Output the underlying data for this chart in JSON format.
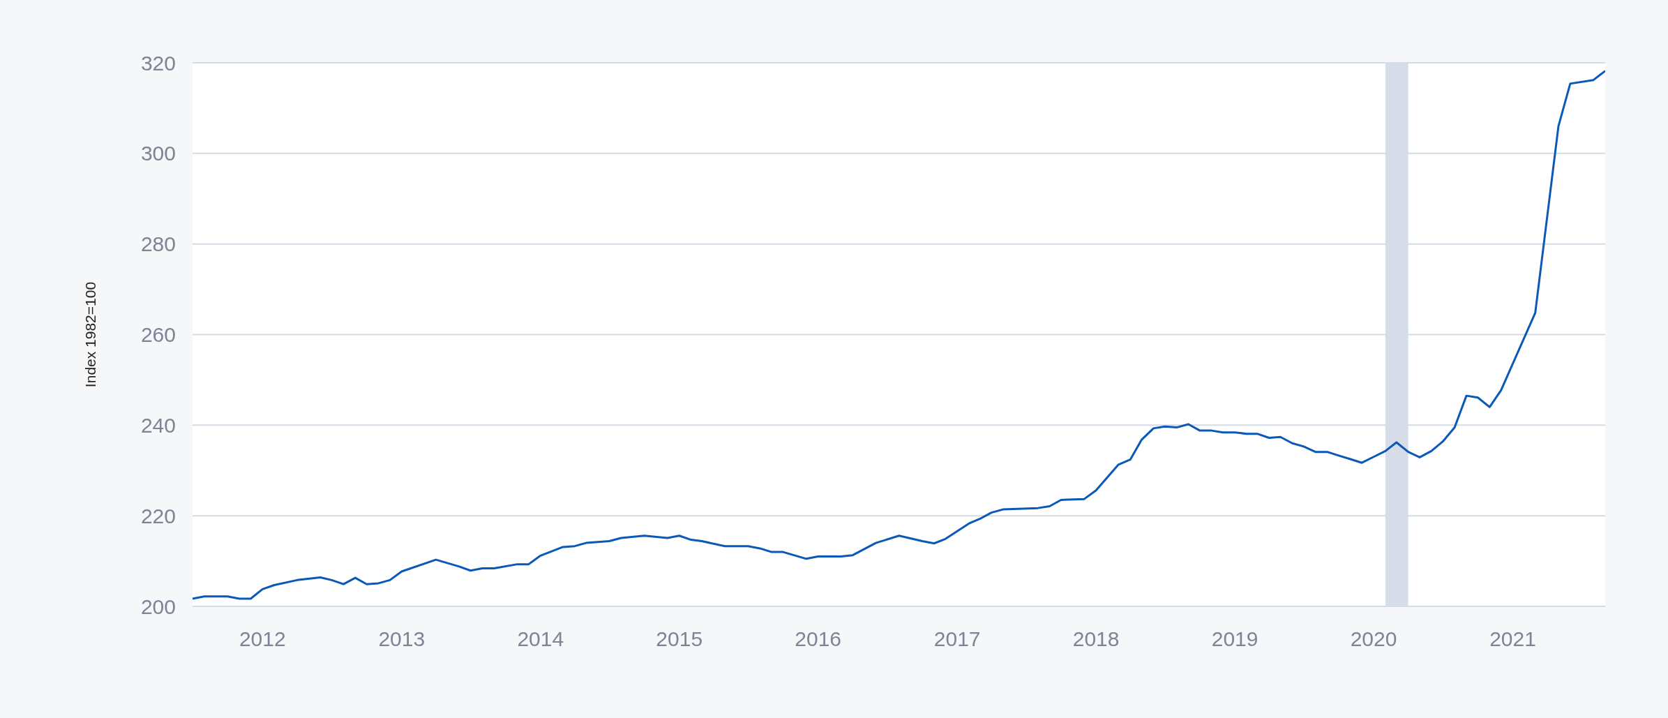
{
  "chart_data": {
    "type": "line",
    "ylabel": "Index 1982=100",
    "x": [
      "2011-07",
      "2011-08",
      "2011-10",
      "2011-11",
      "2011-12",
      "2012-01",
      "2012-02",
      "2012-04",
      "2012-06",
      "2012-07",
      "2012-08",
      "2012-09",
      "2012-10",
      "2012-11",
      "2012-12",
      "2013-01",
      "2013-04",
      "2013-06",
      "2013-07",
      "2013-08",
      "2013-09",
      "2013-11",
      "2013-12",
      "2014-01",
      "2014-03",
      "2014-04",
      "2014-05",
      "2014-07",
      "2014-08",
      "2014-10",
      "2014-12",
      "2015-01",
      "2015-02",
      "2015-03",
      "2015-05",
      "2015-06",
      "2015-07",
      "2015-08",
      "2015-09",
      "2015-10",
      "2015-12",
      "2016-01",
      "2016-03",
      "2016-04",
      "2016-06",
      "2016-08",
      "2016-10",
      "2016-11",
      "2016-12",
      "2017-02",
      "2017-03",
      "2017-04",
      "2017-05",
      "2017-08",
      "2017-09",
      "2017-10",
      "2017-12",
      "2018-01",
      "2018-03",
      "2018-04",
      "2018-05",
      "2018-06",
      "2018-07",
      "2018-08",
      "2018-09",
      "2018-10",
      "2018-11",
      "2018-12",
      "2019-01",
      "2019-02",
      "2019-03",
      "2019-04",
      "2019-05",
      "2019-06",
      "2019-07",
      "2019-08",
      "2019-09",
      "2019-10",
      "2019-11",
      "2019-12",
      "2020-01",
      "2020-02",
      "2020-03",
      "2020-04",
      "2020-05",
      "2020-06",
      "2020-07",
      "2020-08",
      "2020-09",
      "2020-10",
      "2020-11",
      "2020-12",
      "2021-03",
      "2021-05",
      "2021-06",
      "2021-08",
      "2021-09"
    ],
    "series": [
      {
        "color": "#0a58b8",
        "values": [
          201.7,
          202.2,
          202.2,
          201.7,
          201.7,
          203.8,
          204.7,
          205.8,
          206.4,
          205.8,
          204.9,
          206.3,
          204.9,
          205.1,
          205.8,
          207.7,
          210.3,
          208.8,
          207.9,
          208.4,
          208.4,
          209.3,
          209.3,
          211.2,
          213.1,
          213.3,
          214.0,
          214.4,
          215.1,
          215.6,
          215.1,
          215.6,
          214.7,
          214.4,
          213.3,
          213.3,
          213.3,
          212.8,
          212.0,
          212.0,
          210.5,
          211.0,
          211.0,
          211.3,
          214.0,
          215.6,
          214.4,
          213.9,
          214.9,
          218.3,
          219.3,
          220.7,
          221.4,
          221.7,
          222.1,
          223.5,
          223.7,
          225.6,
          231.3,
          232.4,
          236.8,
          239.3,
          239.7,
          239.5,
          240.2,
          238.8,
          238.8,
          238.4,
          238.4,
          238.1,
          238.1,
          237.2,
          237.4,
          236.0,
          235.3,
          234.1,
          234.1,
          233.3,
          232.5,
          231.7,
          233.0,
          234.3,
          236.2,
          234.1,
          232.9,
          234.3,
          236.4,
          239.5,
          246.5,
          246.1,
          244.0,
          247.7,
          264.8,
          306.0,
          315.4,
          316.2,
          318.2
        ]
      }
    ],
    "xlim": [
      "2011-07",
      "2021-09"
    ],
    "xticks": [
      "2012",
      "2013",
      "2014",
      "2015",
      "2016",
      "2017",
      "2018",
      "2019",
      "2020",
      "2021"
    ],
    "ylim": [
      200,
      320
    ],
    "yticks": [
      200,
      220,
      240,
      260,
      280,
      300,
      320
    ],
    "bands": [
      {
        "axis": "x",
        "from": "2020-02",
        "to": "2020-04",
        "color": "#d6dde8"
      }
    ],
    "grid": "y"
  }
}
